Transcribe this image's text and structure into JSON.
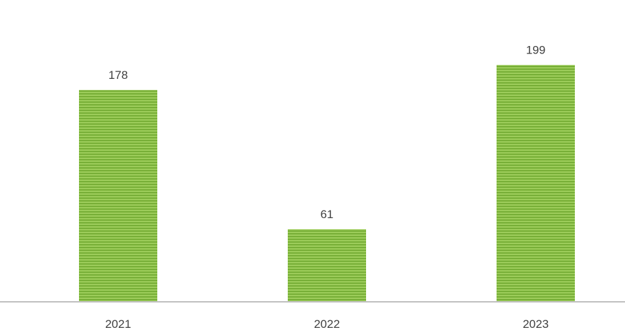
{
  "chart_data": {
    "type": "bar",
    "categories": [
      "2021",
      "2022",
      "2023"
    ],
    "values": [
      178,
      61,
      199
    ],
    "data_labels": [
      "178",
      "61",
      "199"
    ],
    "title": "",
    "xlabel": "",
    "ylabel": "",
    "ylim": [
      0,
      220
    ],
    "grid": false,
    "legend": "none",
    "colors": {
      "bar_fill": "#9ccc5a",
      "bar_stripe": "#6fa82f",
      "axis": "#bfbfbf",
      "text": "#404040"
    }
  }
}
